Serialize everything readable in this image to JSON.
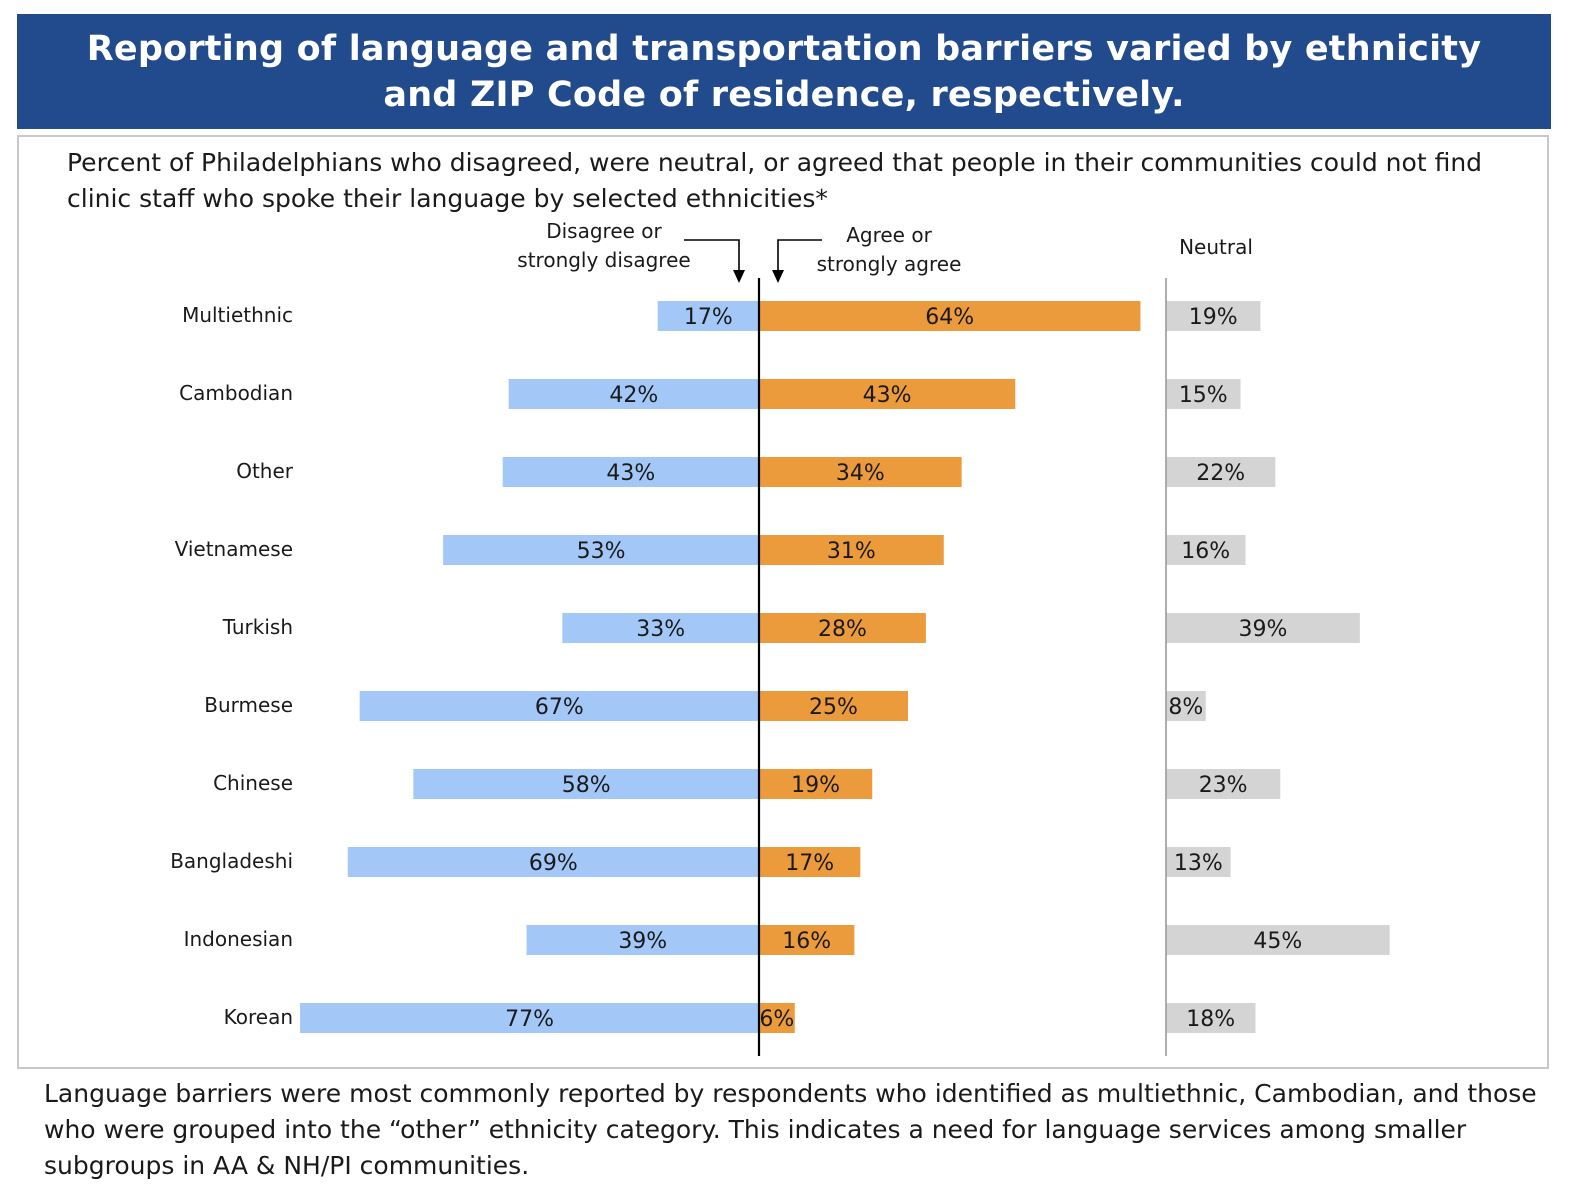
{
  "header": {
    "title": "Reporting of language and transportation barriers varied by ethnicity and ZIP Code of residence, respectively."
  },
  "subtitle": "Percent of Philadelphians who disagreed, were neutral, or agreed that people in their communities could not find clinic staff who spoke their language by selected ethnicities*",
  "chart_data": {
    "type": "bar",
    "orientation": "horizontal-diverging",
    "categories": [
      "Multiethnic",
      "Cambodian",
      "Other",
      "Vietnamese",
      "Turkish",
      "Burmese",
      "Chinese",
      "Bangladeshi",
      "Indonesian",
      "Korean"
    ],
    "series": [
      {
        "name": "Disagree or strongly disagree",
        "label_lines": [
          "Disagree or",
          "strongly disagree"
        ],
        "color": "#a3c8f7",
        "values": [
          17,
          42,
          43,
          53,
          33,
          67,
          58,
          69,
          39,
          77
        ]
      },
      {
        "name": "Agree or strongly agree",
        "label_lines": [
          "Agree or",
          "strongly agree"
        ],
        "color": "#eb9a3c",
        "values": [
          64,
          43,
          34,
          31,
          28,
          25,
          19,
          17,
          16,
          6
        ]
      },
      {
        "name": "Neutral",
        "label_lines": [
          "Neutral"
        ],
        "color": "#d4d4d4",
        "values": [
          19,
          15,
          22,
          16,
          39,
          8,
          23,
          13,
          45,
          18
        ]
      }
    ],
    "value_suffix": "%"
  },
  "footer": "Language barriers were most commonly reported by respondents who identified as multiethnic, Cambodian, and those who were grouped into the “other” ethnicity category. This indicates a need for language services among smaller subgroups in AA & NH/PI communities."
}
